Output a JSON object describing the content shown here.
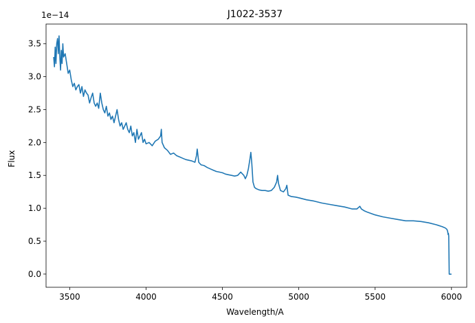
{
  "chart_data": {
    "type": "line",
    "title": "J1022-3537",
    "xlabel": "Wavelength/A",
    "ylabel": "Flux",
    "y_offset_label": "1e−14",
    "y_scale": 1e-14,
    "xlim": [
      3345,
      6100
    ],
    "ylim": [
      -0.2,
      3.8
    ],
    "grid": false,
    "legend": "none",
    "line_color": "#1f77b4",
    "x_ticks": [
      3500,
      4000,
      4500,
      5000,
      5500,
      6000
    ],
    "x_tick_labels": [
      "3500",
      "4000",
      "4500",
      "5000",
      "5500",
      "6000"
    ],
    "y_ticks": [
      0.0,
      0.5,
      1.0,
      1.5,
      2.0,
      2.5,
      3.0,
      3.5
    ],
    "y_tick_labels": [
      "0.0",
      "0.5",
      "1.0",
      "1.5",
      "2.0",
      "2.5",
      "3.0",
      "3.5"
    ],
    "series": [
      {
        "x": [
          3395,
          3400,
          3405,
          3410,
          3415,
          3420,
          3425,
          3430,
          3435,
          3440,
          3445,
          3450,
          3455,
          3460,
          3470,
          3480,
          3490,
          3500,
          3510,
          3520,
          3530,
          3540,
          3550,
          3560,
          3570,
          3580,
          3590,
          3600,
          3610,
          3620,
          3630,
          3640,
          3650,
          3660,
          3670,
          3680,
          3690,
          3700,
          3710,
          3720,
          3730,
          3740,
          3750,
          3760,
          3770,
          3780,
          3790,
          3800,
          3810,
          3820,
          3830,
          3840,
          3850,
          3860,
          3870,
          3880,
          3890,
          3900,
          3910,
          3920,
          3930,
          3940,
          3950,
          3960,
          3970,
          3980,
          3990,
          4000,
          4020,
          4040,
          4060,
          4080,
          4095,
          4100,
          4105,
          4120,
          4140,
          4160,
          4180,
          4200,
          4220,
          4240,
          4260,
          4280,
          4300,
          4320,
          4330,
          4335,
          4345,
          4360,
          4380,
          4400,
          4420,
          4440,
          4460,
          4480,
          4500,
          4520,
          4540,
          4560,
          4580,
          4600,
          4620,
          4640,
          4650,
          4660,
          4670,
          4680,
          4686,
          4692,
          4700,
          4710,
          4720,
          4740,
          4760,
          4780,
          4800,
          4820,
          4840,
          4855,
          4861,
          4867,
          4880,
          4900,
          4915,
          4922,
          4930,
          4950,
          4980,
          5000,
          5050,
          5100,
          5150,
          5200,
          5250,
          5300,
          5350,
          5380,
          5400,
          5410,
          5430,
          5450,
          5500,
          5550,
          5600,
          5650,
          5700,
          5750,
          5800,
          5850,
          5900,
          5940,
          5960,
          5970,
          5975,
          5978,
          5980,
          5982,
          5985,
          5990,
          6000
        ],
        "y": [
          3.3,
          3.15,
          3.45,
          3.2,
          3.5,
          3.58,
          3.35,
          3.62,
          3.3,
          3.1,
          3.4,
          3.2,
          3.5,
          3.3,
          3.35,
          3.2,
          3.05,
          3.1,
          2.95,
          2.85,
          2.9,
          2.8,
          2.85,
          2.88,
          2.75,
          2.85,
          2.7,
          2.8,
          2.75,
          2.72,
          2.6,
          2.68,
          2.75,
          2.6,
          2.55,
          2.6,
          2.52,
          2.75,
          2.6,
          2.5,
          2.45,
          2.55,
          2.4,
          2.45,
          2.35,
          2.4,
          2.3,
          2.4,
          2.5,
          2.35,
          2.25,
          2.3,
          2.2,
          2.25,
          2.3,
          2.2,
          2.15,
          2.25,
          2.1,
          2.15,
          2.0,
          2.2,
          2.05,
          2.1,
          2.15,
          2.0,
          2.05,
          1.98,
          2.0,
          1.95,
          2.02,
          2.05,
          2.1,
          2.2,
          2.0,
          1.92,
          1.88,
          1.82,
          1.84,
          1.8,
          1.78,
          1.76,
          1.74,
          1.73,
          1.72,
          1.7,
          1.8,
          1.9,
          1.7,
          1.66,
          1.65,
          1.62,
          1.6,
          1.58,
          1.56,
          1.55,
          1.54,
          1.52,
          1.51,
          1.5,
          1.49,
          1.5,
          1.55,
          1.5,
          1.45,
          1.5,
          1.6,
          1.75,
          1.85,
          1.7,
          1.4,
          1.32,
          1.3,
          1.28,
          1.27,
          1.27,
          1.26,
          1.27,
          1.32,
          1.4,
          1.5,
          1.38,
          1.27,
          1.25,
          1.3,
          1.35,
          1.2,
          1.18,
          1.17,
          1.16,
          1.13,
          1.11,
          1.08,
          1.06,
          1.04,
          1.02,
          0.99,
          0.99,
          1.03,
          0.99,
          0.96,
          0.94,
          0.9,
          0.87,
          0.85,
          0.83,
          0.81,
          0.81,
          0.8,
          0.78,
          0.75,
          0.72,
          0.7,
          0.68,
          0.65,
          0.6,
          0.62,
          0.58,
          0.0,
          0.0,
          0.0
        ]
      }
    ]
  }
}
